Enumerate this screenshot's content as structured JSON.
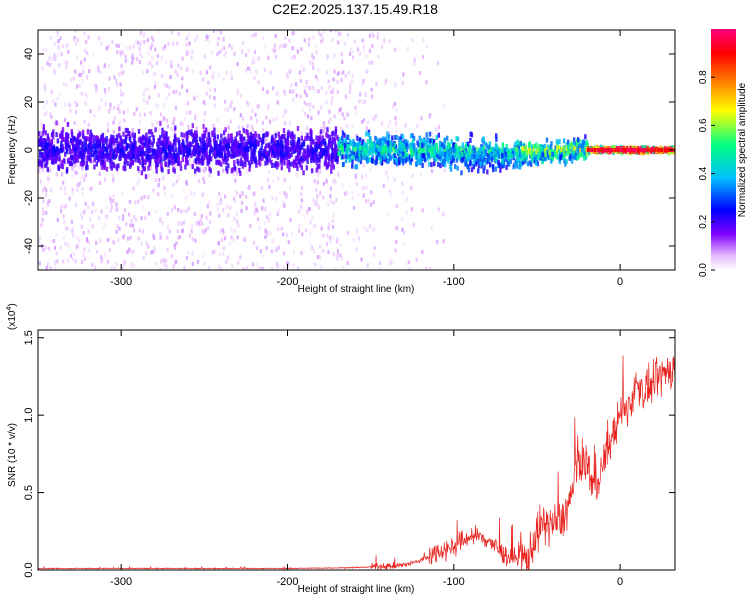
{
  "title": "C2E2.2025.137.15.49.R18",
  "chart_data": [
    {
      "type": "heatmap",
      "xlabel": "Height of straight line (km)",
      "ylabel": "Frequency (Hz)",
      "xlim": [
        -350,
        33
      ],
      "ylim": [
        -50,
        50
      ],
      "xticks": [
        -300,
        -200,
        -100,
        0
      ],
      "yticks": [
        -40,
        -20,
        0,
        20,
        40
      ],
      "colorbar": {
        "label": "Normalized spectral amplitude",
        "range": [
          0.0,
          1.0
        ],
        "ticks": [
          "0.0",
          "0.2",
          "0.4",
          "0.6",
          "0.8"
        ],
        "colors": [
          "#ffffff",
          "#e6b8ff",
          "#7f00ff",
          "#0000ff",
          "#00bfff",
          "#00ff80",
          "#ffff00",
          "#ff8000",
          "#ff0000",
          "#ff0080"
        ]
      },
      "bands": [
        {
          "x": [
            -350,
            -170
          ],
          "freq_spread_hz": 8,
          "amplitude": 0.12
        },
        {
          "x": [
            -170,
            -60
          ],
          "freq_spread_hz": 6,
          "amplitude": 0.35
        },
        {
          "x": [
            -60,
            -20
          ],
          "freq_spread_hz": 4,
          "amplitude": 0.45
        },
        {
          "x": [
            -20,
            33
          ],
          "freq_spread_hz": 1,
          "amplitude": 0.9
        }
      ],
      "scatter_region": {
        "x": [
          -350,
          -100
        ],
        "freq_range_hz": [
          -50,
          50
        ],
        "amplitude": 0.05
      }
    },
    {
      "type": "line",
      "xlabel": "Height of straight line (km)",
      "ylabel": "SNR (10 * v/v)",
      "scale_label": "(x10",
      "scale_exponent": "4",
      "xlim": [
        -350,
        33
      ],
      "ylim": [
        0.0,
        1.55
      ],
      "xticks": [
        -300,
        -200,
        -100,
        0
      ],
      "yticks": [
        "0.0",
        "0.5",
        "1.0",
        "1.5"
      ],
      "series": [
        {
          "color": "#e8231e",
          "x": [
            -350,
            -300,
            -250,
            -200,
            -160,
            -130,
            -120,
            -110,
            -100,
            -90,
            -80,
            -70,
            -60,
            -55,
            -50,
            -45,
            -40,
            -35,
            -30,
            -25,
            -20,
            -15,
            -10,
            -5,
            0,
            5,
            10,
            15,
            20,
            25,
            30,
            33
          ],
          "y": [
            0.01,
            0.01,
            0.01,
            0.01,
            0.015,
            0.03,
            0.06,
            0.12,
            0.15,
            0.22,
            0.2,
            0.1,
            0.06,
            0.08,
            0.25,
            0.3,
            0.3,
            0.32,
            0.45,
            0.7,
            0.7,
            0.5,
            0.7,
            0.85,
            1.0,
            1.05,
            1.2,
            1.15,
            1.2,
            1.25,
            1.3,
            1.3
          ]
        }
      ],
      "noise_amplitude": [
        {
          "x": [
            -350,
            -150
          ],
          "amp": 0.005
        },
        {
          "x": [
            -150,
            -115
          ],
          "amp": 0.03
        },
        {
          "x": [
            -115,
            -60
          ],
          "amp": 0.1
        },
        {
          "x": [
            -60,
            -20
          ],
          "amp": 0.2
        },
        {
          "x": [
            -20,
            33
          ],
          "amp": 0.18
        }
      ]
    }
  ]
}
